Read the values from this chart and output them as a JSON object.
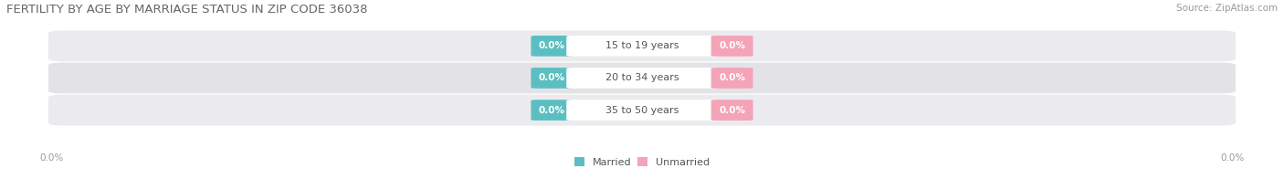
{
  "title": "FERTILITY BY AGE BY MARRIAGE STATUS IN ZIP CODE 36038",
  "source": "Source: ZipAtlas.com",
  "categories": [
    "15 to 19 years",
    "20 to 34 years",
    "35 to 50 years"
  ],
  "married_values": [
    0.0,
    0.0,
    0.0
  ],
  "unmarried_values": [
    0.0,
    0.0,
    0.0
  ],
  "married_color": "#5bbfc2",
  "unmarried_color": "#f4a3b8",
  "row_bg_color": "#e8e8ec",
  "row_bg_light": "#f0f0f4",
  "center_pill_color": "#ffffff",
  "xlim_left": -1.0,
  "xlim_right": 1.0,
  "title_fontsize": 9.5,
  "bar_label_fontsize": 7.5,
  "cat_label_fontsize": 8.0,
  "tick_fontsize": 7.5,
  "source_fontsize": 7.5,
  "legend_fontsize": 8.0,
  "legend_married": "Married",
  "legend_unmarried": "Unmarried",
  "background_color": "#ffffff",
  "text_color": "#666666",
  "tick_color": "#999999"
}
